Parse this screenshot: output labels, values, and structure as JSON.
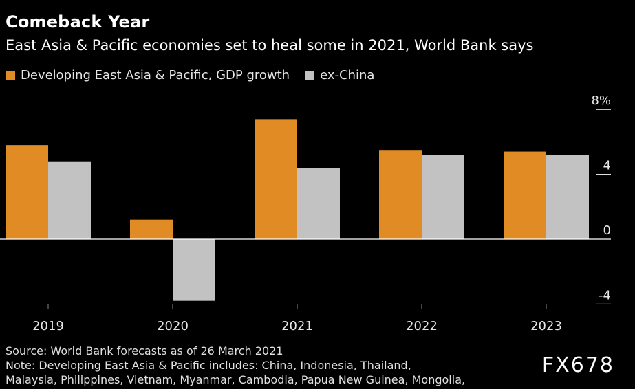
{
  "title": "Comeback Year",
  "subtitle": "East Asia & Pacific economies set to heal some in 2021, World Bank says",
  "legend": [
    {
      "label": "Developing East Asia & Pacific, GDP growth",
      "color": "#e08b24"
    },
    {
      "label": "ex-China",
      "color": "#c2c2c2"
    }
  ],
  "chart_data": {
    "type": "bar",
    "categories": [
      "2019",
      "2020",
      "2021",
      "2022",
      "2023"
    ],
    "series": [
      {
        "name": "Developing East Asia & Pacific, GDP growth",
        "values": [
          5.8,
          1.2,
          7.4,
          5.5,
          5.4
        ],
        "color": "#e08b24"
      },
      {
        "name": "ex-China",
        "values": [
          4.8,
          -3.8,
          4.4,
          5.2,
          5.2
        ],
        "color": "#c2c2c2"
      }
    ],
    "y_ticks": [
      "8%",
      "4",
      "0",
      "-4"
    ],
    "y_tick_values": [
      8,
      4,
      0,
      -4
    ],
    "ylim": [
      -4.5,
      8.5
    ]
  },
  "footer": {
    "source": "Source: World Bank forecasts as of 26 March 2021",
    "note_line1": "Note: Developing East Asia & Pacific includes: China, Indonesia, Thailand,",
    "note_line2": "Malaysia, Philippines, Vietnam, Myanmar, Cambodia, Papua New Guinea, Mongolia,"
  },
  "brand": "FX678"
}
